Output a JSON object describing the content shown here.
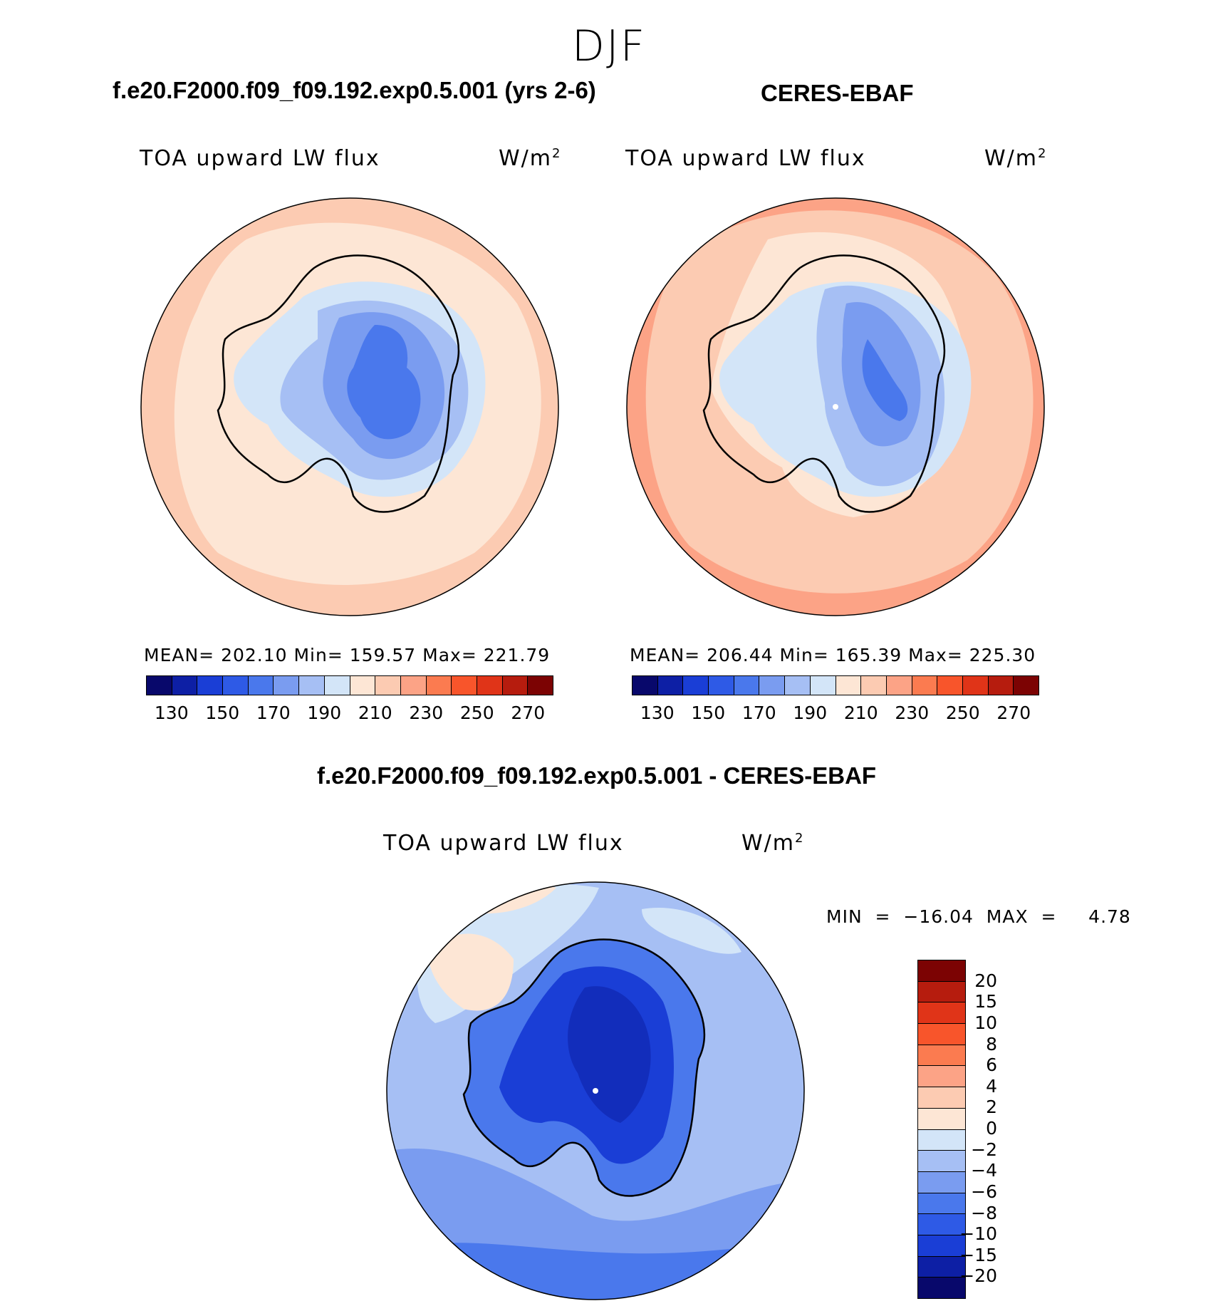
{
  "season": "DJF",
  "panels": [
    {
      "title": "f.e20.F2000.f09_f09.192.exp0.5.001 (yrs 2-6)",
      "variable": "TOA upward LW flux",
      "unit": "W/m",
      "unit_sup": "2",
      "stats": "MEAN= 202.10   Min= 159.57   Max= 221.79"
    },
    {
      "title": "CERES-EBAF",
      "variable": "TOA upward LW flux",
      "unit": "W/m",
      "unit_sup": "2",
      "stats": "MEAN= 206.44   Min= 165.39   Max= 225.30"
    }
  ],
  "abs_colorbar": {
    "colors": [
      "#08086b",
      "#0d1fa5",
      "#1a3ed6",
      "#2e5ae6",
      "#4a78ec",
      "#7a9cf0",
      "#a6bff4",
      "#d3e5f8",
      "#fde6d5",
      "#fccbb2",
      "#fca386",
      "#fb7b50",
      "#f8552b",
      "#e03418",
      "#b61c0e",
      "#7c0303"
    ],
    "ticks": [
      "130",
      "150",
      "170",
      "190",
      "210",
      "230",
      "250",
      "270"
    ]
  },
  "diff": {
    "title": "f.e20.F2000.f09_f09.192.exp0.5.001 - CERES-EBAF",
    "variable": "TOA upward LW flux",
    "unit": "W/m",
    "unit_sup": "2",
    "stats": "MIN  =  −16.04  MAX  =     4.78",
    "colors": [
      "#7c0303",
      "#b61c0e",
      "#e03418",
      "#f8552b",
      "#fb7b50",
      "#fca386",
      "#fccbb2",
      "#fde6d5",
      "#d3e5f8",
      "#a6bff4",
      "#7a9cf0",
      "#4a78ec",
      "#2e5ae6",
      "#1a3ed6",
      "#0d1fa5",
      "#08086b"
    ],
    "ticks": [
      "20",
      "15",
      "10",
      "8",
      "6",
      "4",
      "2",
      "0",
      "−2",
      "−4",
      "−6",
      "−8",
      "−10",
      "−15",
      "−20"
    ]
  }
}
